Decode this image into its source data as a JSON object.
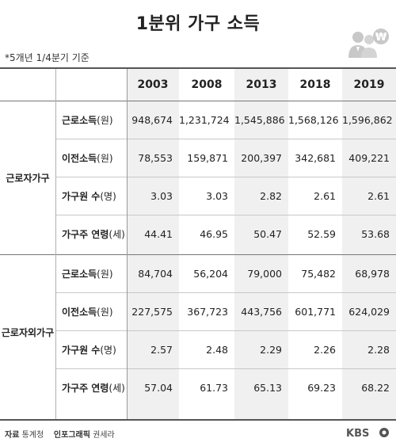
{
  "title": "1분위 가구 소득",
  "basis_note": "*5개년 1/4분기 기준",
  "years": [
    "2003",
    "2008",
    "2013",
    "2018",
    "2019"
  ],
  "groups": [
    {
      "name": "근로자가구",
      "rows": [
        {
          "label_main": "근로소득",
          "label_unit": "(원)",
          "values": [
            "948,674",
            "1,231,724",
            "1,545,886",
            "1,568,126",
            "1,596,862"
          ]
        },
        {
          "label_main": "이전소득",
          "label_unit": "(원)",
          "values": [
            "78,553",
            "159,871",
            "200,397",
            "342,681",
            "409,221"
          ]
        },
        {
          "label_main": "가구원 수",
          "label_unit": "(명)",
          "values": [
            "3.03",
            "3.03",
            "2.82",
            "2.61",
            "2.61"
          ]
        },
        {
          "label_main": "가구주 연령",
          "label_unit": "(세)",
          "values": [
            "44.41",
            "46.95",
            "50.47",
            "52.59",
            "53.68"
          ]
        }
      ]
    },
    {
      "name": "근로자외가구",
      "rows": [
        {
          "label_main": "근로소득",
          "label_unit": "(원)",
          "values": [
            "84,704",
            "56,204",
            "79,000",
            "75,482",
            "68,978"
          ]
        },
        {
          "label_main": "이전소득",
          "label_unit": "(원)",
          "values": [
            "227,575",
            "367,723",
            "443,756",
            "601,771",
            "624,029"
          ]
        },
        {
          "label_main": "가구원 수",
          "label_unit": "(명)",
          "values": [
            "2.57",
            "2.48",
            "2.29",
            "2.26",
            "2.28"
          ]
        },
        {
          "label_main": "가구주 연령",
          "label_unit": "(세)",
          "values": [
            "57.04",
            "61.73",
            "65.13",
            "69.23",
            "68.22"
          ]
        }
      ]
    }
  ],
  "footer": {
    "source_label": "자료",
    "source_value": "통계청",
    "graphic_label": "인포그래픽",
    "graphic_value": "권세라"
  },
  "logo_text": "KBS",
  "icon": "people-money-icon",
  "colors": {
    "shade": "#f0f0f0",
    "text": "#222222",
    "icon": "#c8c8c8"
  }
}
